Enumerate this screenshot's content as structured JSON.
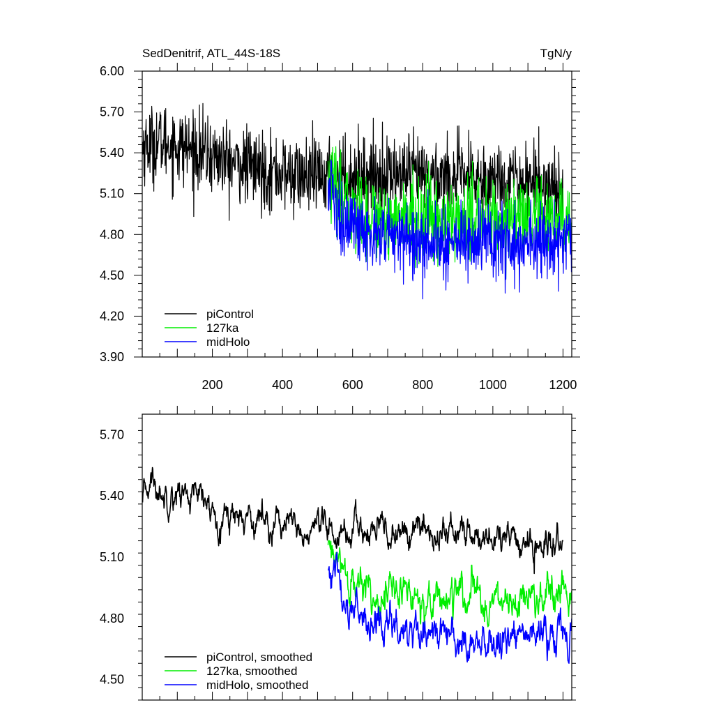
{
  "chart_data": [
    {
      "type": "line",
      "title": "SedDenitrif, ATL_44S-18S",
      "units": "TgN/y",
      "xlim": [
        0,
        1225
      ],
      "ylim": [
        3.9,
        6.0
      ],
      "yticks": [
        "3.90",
        "4.20",
        "4.50",
        "4.80",
        "5.10",
        "5.40",
        "5.70",
        "6.00"
      ],
      "xticks": [
        "200",
        "400",
        "600",
        "800",
        "1000",
        "1200"
      ],
      "legend_position": "bottom-left",
      "series": [
        {
          "name": "piControl",
          "color": "#000000",
          "x_start": 1,
          "x_end": 1200,
          "mean_path": [
            [
              1,
              5.45
            ],
            [
              50,
              5.48
            ],
            [
              150,
              5.42
            ],
            [
              250,
              5.33
            ],
            [
              350,
              5.27
            ],
            [
              450,
              5.22
            ],
            [
              530,
              5.22
            ],
            [
              700,
              5.24
            ],
            [
              900,
              5.22
            ],
            [
              1100,
              5.2
            ],
            [
              1200,
              5.14
            ]
          ],
          "noise_sd": 0.14,
          "min": 4.75,
          "max": 5.91
        },
        {
          "name": "127ka",
          "color": "#00ee00",
          "x_start": 530,
          "x_end": 1225,
          "mean_path": [
            [
              530,
              5.22
            ],
            [
              560,
              5.05
            ],
            [
              620,
              4.95
            ],
            [
              800,
              4.9
            ],
            [
              1000,
              4.9
            ],
            [
              1225,
              4.88
            ]
          ],
          "noise_sd": 0.15,
          "min": 4.24,
          "max": 5.52
        },
        {
          "name": "midHolo",
          "color": "#0000ff",
          "x_start": 530,
          "x_end": 1225,
          "mean_path": [
            [
              530,
              5.15
            ],
            [
              560,
              4.95
            ],
            [
              620,
              4.8
            ],
            [
              800,
              4.76
            ],
            [
              1000,
              4.74
            ],
            [
              1225,
              4.72
            ]
          ],
          "noise_sd": 0.14,
          "min": 4.15,
          "max": 5.42
        }
      ]
    },
    {
      "type": "line",
      "xlim": [
        0,
        1225
      ],
      "ylim": [
        4.4,
        5.8
      ],
      "yticks": [
        "4.50",
        "4.80",
        "5.10",
        "5.40",
        "5.70"
      ],
      "legend_position": "bottom-left",
      "series": [
        {
          "name": "piControl, smoothed",
          "color": "#000000",
          "x_start": 1,
          "x_end": 1200,
          "mean_path": [
            [
              1,
              5.35
            ],
            [
              25,
              5.5
            ],
            [
              40,
              5.42
            ],
            [
              100,
              5.42
            ],
            [
              150,
              5.4
            ],
            [
              200,
              5.32
            ],
            [
              300,
              5.3
            ],
            [
              400,
              5.28
            ],
            [
              450,
              5.2
            ],
            [
              530,
              5.22
            ],
            [
              700,
              5.22
            ],
            [
              900,
              5.22
            ],
            [
              1100,
              5.16
            ],
            [
              1200,
              5.15
            ]
          ],
          "noise_sd": 0.04,
          "min": 5.02,
          "max": 5.7
        },
        {
          "name": "127ka, smoothed",
          "color": "#00ee00",
          "x_start": 530,
          "x_end": 1225,
          "mean_path": [
            [
              530,
              5.15
            ],
            [
              560,
              5.05
            ],
            [
              600,
              4.95
            ],
            [
              750,
              4.92
            ],
            [
              900,
              4.9
            ],
            [
              1050,
              4.88
            ],
            [
              1225,
              4.88
            ]
          ],
          "noise_sd": 0.05,
          "min": 4.75,
          "max": 5.18
        },
        {
          "name": "midHolo, smoothed",
          "color": "#0000ff",
          "x_start": 530,
          "x_end": 1225,
          "mean_path": [
            [
              530,
              5.05
            ],
            [
              560,
              4.95
            ],
            [
              600,
              4.82
            ],
            [
              700,
              4.75
            ],
            [
              900,
              4.72
            ],
            [
              1100,
              4.7
            ],
            [
              1225,
              4.72
            ]
          ],
          "noise_sd": 0.05,
          "min": 4.55,
          "max": 5.18
        }
      ]
    }
  ]
}
